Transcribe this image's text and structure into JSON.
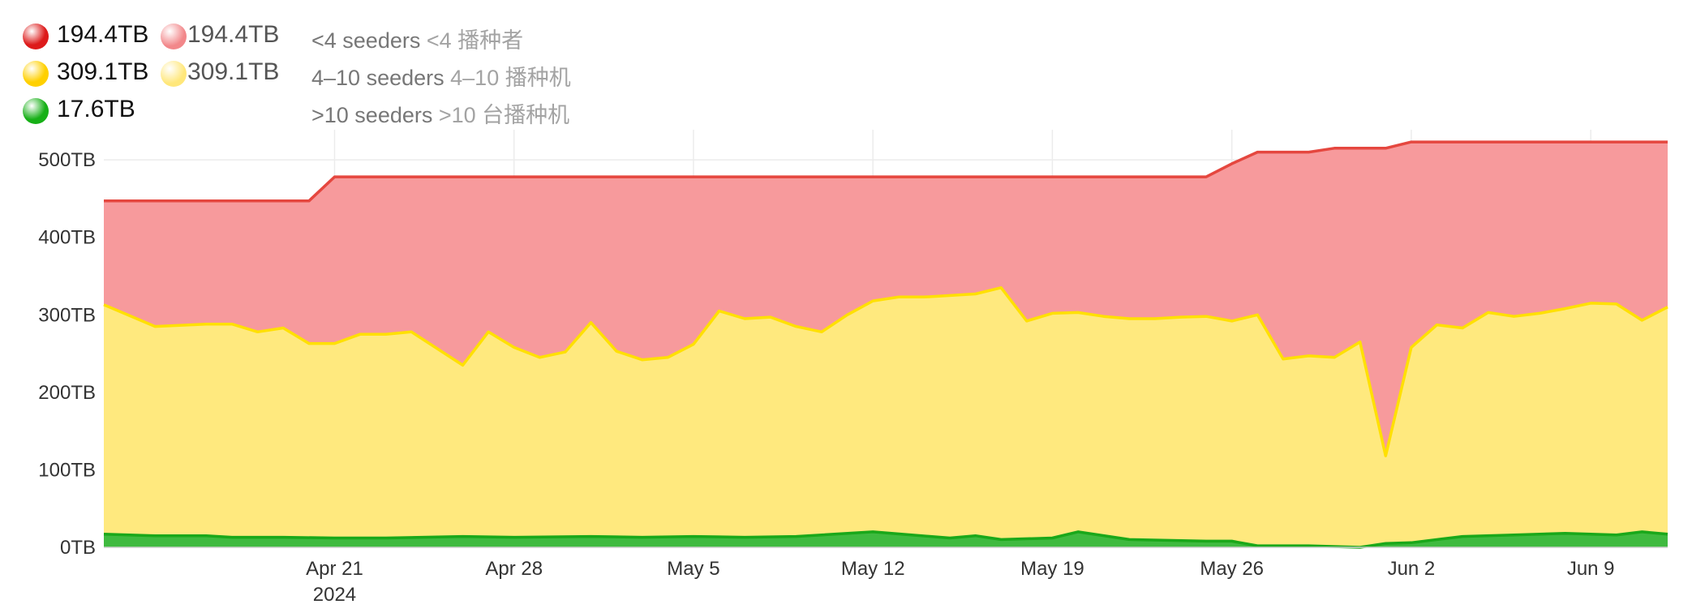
{
  "legend": [
    {
      "value": "194.4TB",
      "value_light": "194.4TB",
      "label_en": "<4 seeders",
      "label_zh": "<4 播种者",
      "color": "#dd1b1b",
      "color_light": "#f2878a"
    },
    {
      "value": "309.1TB",
      "value_light": "309.1TB",
      "label_en": "4–10 seeders",
      "label_zh": "4–10 播种机",
      "color": "#ffd000",
      "color_light": "#ffe77a"
    },
    {
      "value": "17.6TB",
      "value_light": "",
      "label_en": ">10 seeders",
      "label_zh": ">10 台播种机",
      "color": "#17b017",
      "color_light": ""
    }
  ],
  "chart_data": {
    "type": "area",
    "stacked": true,
    "x_start": "2024-04-12",
    "x_end": "2024-06-12",
    "ylim": [
      0,
      520
    ],
    "y_ticks": [
      0,
      100,
      200,
      300,
      400,
      500
    ],
    "y_tick_labels": [
      "0TB",
      "100TB",
      "200TB",
      "300TB",
      "400TB",
      "500TB"
    ],
    "x_ticks": [
      {
        "date": "2024-04-21",
        "label": "Apr 21",
        "sublabel": "2024"
      },
      {
        "date": "2024-04-28",
        "label": "Apr 28"
      },
      {
        "date": "2024-05-05",
        "label": "May 5"
      },
      {
        "date": "2024-05-12",
        "label": "May 12"
      },
      {
        "date": "2024-05-19",
        "label": "May 19"
      },
      {
        "date": "2024-05-26",
        "label": "May 26"
      },
      {
        "date": "2024-06-02",
        "label": "Jun 2"
      },
      {
        "date": "2024-06-09",
        "label": "Jun 9"
      }
    ],
    "grid": true,
    "series": [
      {
        "label": ">10 seeders",
        "line_color": "#1aa81a",
        "fill_color": "#3fba3f",
        "points": [
          [
            "2024-04-12",
            17
          ],
          [
            "2024-04-14",
            15
          ],
          [
            "2024-04-16",
            15
          ],
          [
            "2024-04-17",
            13
          ],
          [
            "2024-04-19",
            13
          ],
          [
            "2024-04-21",
            12
          ],
          [
            "2024-04-23",
            12
          ],
          [
            "2024-04-26",
            14
          ],
          [
            "2024-04-28",
            13
          ],
          [
            "2024-05-01",
            14
          ],
          [
            "2024-05-03",
            13
          ],
          [
            "2024-05-05",
            14
          ],
          [
            "2024-05-07",
            13
          ],
          [
            "2024-05-09",
            14
          ],
          [
            "2024-05-12",
            20
          ],
          [
            "2024-05-15",
            12
          ],
          [
            "2024-05-16",
            15
          ],
          [
            "2024-05-17",
            10
          ],
          [
            "2024-05-19",
            12
          ],
          [
            "2024-05-20",
            20
          ],
          [
            "2024-05-22",
            10
          ],
          [
            "2024-05-25",
            8
          ],
          [
            "2024-05-26",
            8
          ],
          [
            "2024-05-27",
            2
          ],
          [
            "2024-05-29",
            2
          ],
          [
            "2024-05-31",
            0
          ],
          [
            "2024-06-01",
            5
          ],
          [
            "2024-06-02",
            6
          ],
          [
            "2024-06-04",
            14
          ],
          [
            "2024-06-06",
            16
          ],
          [
            "2024-06-08",
            18
          ],
          [
            "2024-06-10",
            16
          ],
          [
            "2024-06-11",
            20
          ],
          [
            "2024-06-12",
            17
          ]
        ]
      },
      {
        "label": "4-10 seeders",
        "line_color": "#ffe000",
        "fill_color": "#ffe97e",
        "points": [
          [
            "2024-04-12",
            313
          ],
          [
            "2024-04-14",
            285
          ],
          [
            "2024-04-16",
            288
          ],
          [
            "2024-04-17",
            288
          ],
          [
            "2024-04-18",
            278
          ],
          [
            "2024-04-19",
            283
          ],
          [
            "2024-04-20",
            263
          ],
          [
            "2024-04-21",
            263
          ],
          [
            "2024-04-22",
            275
          ],
          [
            "2024-04-23",
            275
          ],
          [
            "2024-04-24",
            278
          ],
          [
            "2024-04-26",
            235
          ],
          [
            "2024-04-27",
            278
          ],
          [
            "2024-04-28",
            258
          ],
          [
            "2024-04-29",
            245
          ],
          [
            "2024-04-30",
            252
          ],
          [
            "2024-05-01",
            290
          ],
          [
            "2024-05-02",
            253
          ],
          [
            "2024-05-03",
            242
          ],
          [
            "2024-05-04",
            245
          ],
          [
            "2024-05-05",
            262
          ],
          [
            "2024-05-06",
            305
          ],
          [
            "2024-05-07",
            295
          ],
          [
            "2024-05-08",
            297
          ],
          [
            "2024-05-09",
            285
          ],
          [
            "2024-05-10",
            278
          ],
          [
            "2024-05-11",
            300
          ],
          [
            "2024-05-12",
            318
          ],
          [
            "2024-05-13",
            323
          ],
          [
            "2024-05-14",
            323
          ],
          [
            "2024-05-16",
            327
          ],
          [
            "2024-05-17",
            335
          ],
          [
            "2024-05-18",
            292
          ],
          [
            "2024-05-19",
            302
          ],
          [
            "2024-05-20",
            303
          ],
          [
            "2024-05-21",
            298
          ],
          [
            "2024-05-22",
            295
          ],
          [
            "2024-05-23",
            295
          ],
          [
            "2024-05-24",
            297
          ],
          [
            "2024-05-25",
            298
          ],
          [
            "2024-05-26",
            292
          ],
          [
            "2024-05-27",
            300
          ],
          [
            "2024-05-28",
            243
          ],
          [
            "2024-05-29",
            247
          ],
          [
            "2024-05-30",
            245
          ],
          [
            "2024-05-31",
            265
          ],
          [
            "2024-06-01",
            118
          ],
          [
            "2024-06-02",
            258
          ],
          [
            "2024-06-03",
            287
          ],
          [
            "2024-06-04",
            283
          ],
          [
            "2024-06-05",
            303
          ],
          [
            "2024-06-06",
            298
          ],
          [
            "2024-06-07",
            302
          ],
          [
            "2024-06-08",
            308
          ],
          [
            "2024-06-09",
            315
          ],
          [
            "2024-06-10",
            314
          ],
          [
            "2024-06-11",
            293
          ],
          [
            "2024-06-12",
            310
          ]
        ]
      },
      {
        "label": "<4 seeders",
        "line_color": "#e5473f",
        "fill_color": "#f79a9c",
        "points": [
          [
            "2024-04-12",
            447
          ],
          [
            "2024-04-20",
            447
          ],
          [
            "2024-04-21",
            478
          ],
          [
            "2024-05-25",
            478
          ],
          [
            "2024-05-26",
            495
          ],
          [
            "2024-05-27",
            510
          ],
          [
            "2024-05-29",
            510
          ],
          [
            "2024-05-30",
            515
          ],
          [
            "2024-06-01",
            515
          ],
          [
            "2024-06-02",
            523
          ],
          [
            "2024-06-12",
            523
          ]
        ]
      }
    ]
  }
}
